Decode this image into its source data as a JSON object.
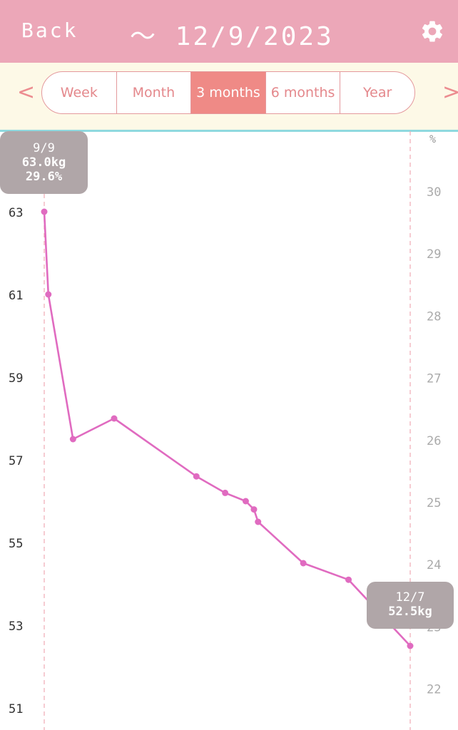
{
  "header": {
    "back_label": "Back",
    "title": "〜 12/9/2023"
  },
  "nav": {
    "prev": "<",
    "next": ">"
  },
  "tabs": [
    {
      "label": "Week",
      "active": false
    },
    {
      "label": "Month",
      "active": false
    },
    {
      "label": "3 months",
      "active": true
    },
    {
      "label": "6 months",
      "active": false
    },
    {
      "label": "Year",
      "active": false
    }
  ],
  "tooltips": {
    "start": {
      "date": "9/9",
      "weight": "63.0kg",
      "fat": "29.6%"
    },
    "end": {
      "date": "12/7",
      "weight": "52.5kg"
    }
  },
  "colors": {
    "header": "#eca7b8",
    "line": "#e06bc0",
    "active_tab": "#ef8a86",
    "tooltip": "#b0a6a8"
  },
  "chart_data": {
    "type": "line",
    "y_left": {
      "ticks": [
        "63",
        "61",
        "59",
        "57",
        "55",
        "53",
        "51"
      ],
      "range": [
        51,
        63
      ]
    },
    "y_right": {
      "unit": "%",
      "ticks": [
        "30",
        "29",
        "28",
        "27",
        "26",
        "25",
        "24",
        "23",
        "22"
      ],
      "range": [
        22,
        30
      ]
    },
    "x_range": [
      "9/9",
      "12/7"
    ],
    "series": [
      {
        "x": [
          "9/9",
          "9/10",
          "9/16",
          "9/26",
          "10/16",
          "10/23",
          "10/28",
          "10/30",
          "10/31",
          "11/11",
          "11/22",
          "12/7"
        ],
        "values": [
          63.0,
          61.0,
          57.5,
          58.0,
          56.6,
          56.2,
          56.0,
          55.8,
          55.5,
          54.5,
          54.1,
          52.5
        ]
      }
    ]
  }
}
